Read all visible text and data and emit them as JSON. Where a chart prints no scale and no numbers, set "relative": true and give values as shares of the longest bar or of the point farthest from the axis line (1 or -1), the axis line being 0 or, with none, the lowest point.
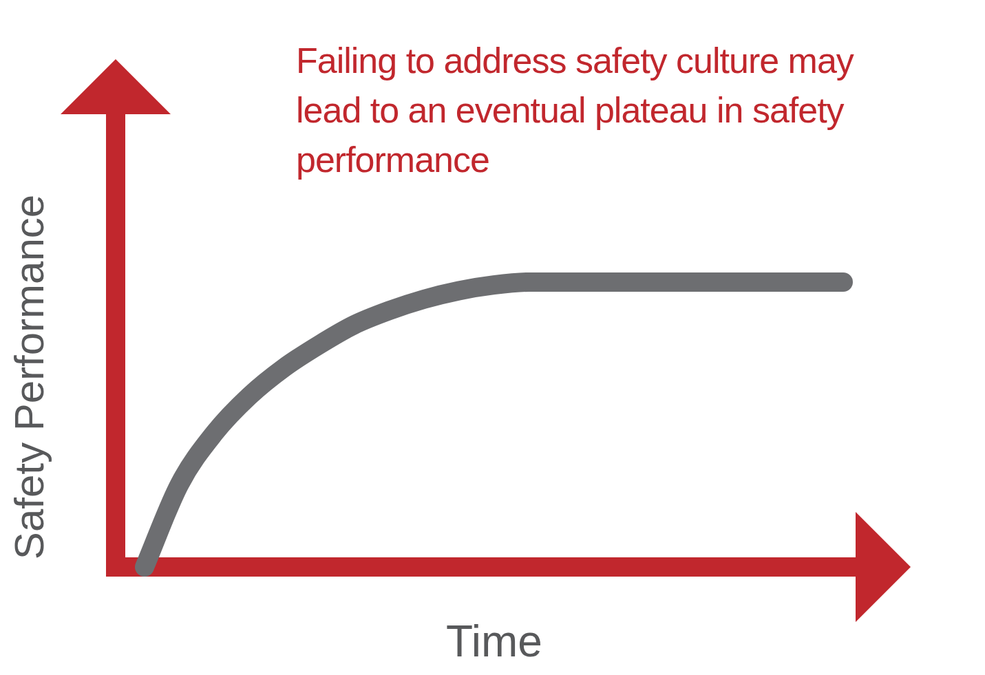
{
  "chart_data": {
    "type": "line",
    "title": "Failing to address safety culture may lead to an eventual plateau in safety performance",
    "xlabel": "Time",
    "ylabel": "Safety Performance",
    "relative": true,
    "marker": "none",
    "legend": false,
    "categories": [
      null,
      null,
      null,
      null,
      null,
      null,
      null,
      null,
      null,
      null,
      null,
      null,
      null,
      null,
      null,
      null,
      null,
      null,
      null,
      null,
      null
    ],
    "series": [
      {
        "color": "#6d6e71",
        "values": [
          0,
          0.29,
          0.47,
          0.6,
          0.7,
          0.78,
          0.85,
          0.9,
          0.94,
          0.97,
          0.99,
          1,
          1,
          1,
          1,
          1,
          1,
          1,
          1,
          1,
          1
        ]
      }
    ]
  }
}
